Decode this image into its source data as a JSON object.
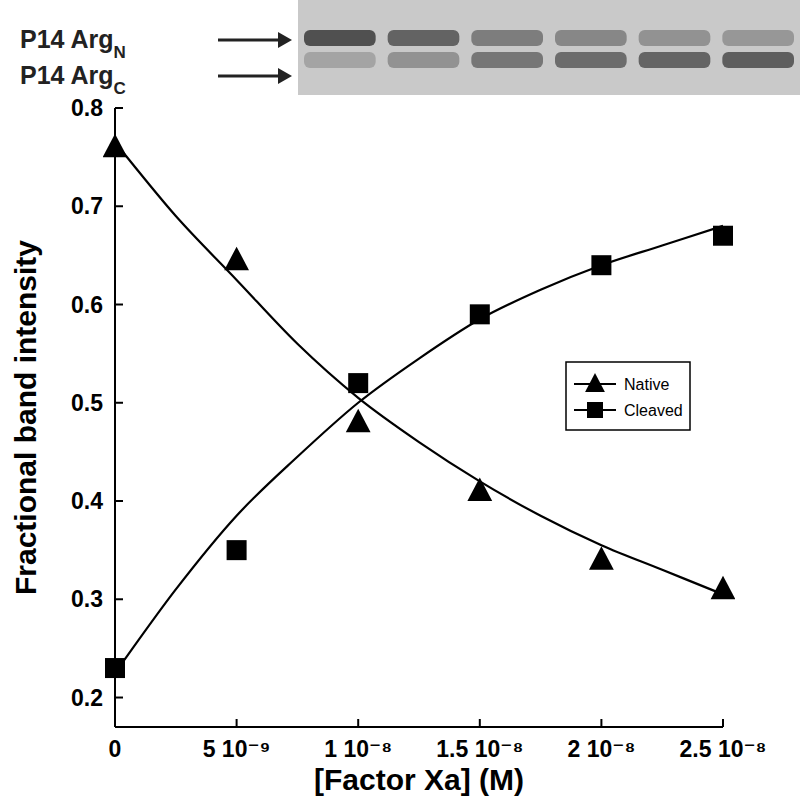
{
  "chart_data": {
    "type": "line",
    "x_label": "[Factor Xa] (M)",
    "y_label": "Fractional band intensity",
    "x": [
      0,
      5e-09,
      1e-08,
      1.5e-08,
      2e-08,
      2.5e-08
    ],
    "series": [
      {
        "name": "Native",
        "color": "#000000",
        "marker": "triangle",
        "line_style": "solid",
        "values": [
          0.76,
          0.645,
          0.48,
          0.41,
          0.34,
          0.31
        ],
        "fit_x": [
          0,
          2.5e-09,
          5e-09,
          7.5e-09,
          1e-08,
          1.25e-08,
          1.5e-08,
          1.75e-08,
          2e-08,
          2.25e-08,
          2.5e-08
        ],
        "fit": [
          0.765,
          0.69,
          0.625,
          0.56,
          0.505,
          0.46,
          0.42,
          0.385,
          0.355,
          0.33,
          0.305
        ]
      },
      {
        "name": "Cleaved",
        "color": "#000000",
        "marker": "square",
        "line_style": "solid",
        "values": [
          0.23,
          0.35,
          0.52,
          0.59,
          0.64,
          0.67
        ],
        "fit_x": [
          0,
          2.5e-09,
          5e-09,
          7.5e-09,
          1e-08,
          1.25e-08,
          1.5e-08,
          1.75e-08,
          2e-08,
          2.25e-08,
          2.5e-08
        ],
        "fit": [
          0.225,
          0.31,
          0.385,
          0.445,
          0.5,
          0.545,
          0.585,
          0.615,
          0.64,
          0.66,
          0.68
        ]
      }
    ],
    "xlim": [
      0,
      2.5e-08
    ],
    "xticks": [
      0,
      {
        "value": 5e-09,
        "label": "5 10⁻⁹"
      },
      {
        "value": 1e-08,
        "label": "1 10⁻⁸"
      },
      {
        "value": 1.5e-08,
        "label": "1.5 10⁻⁸"
      },
      {
        "value": 2e-08,
        "label": "2 10⁻⁸"
      },
      {
        "value": 2.5e-08,
        "label": "2.5 10⁻⁸"
      }
    ],
    "ylim": [
      0.17,
      0.8
    ],
    "yticks": [
      0.2,
      0.3,
      0.4,
      0.5,
      0.6,
      0.7,
      0.8
    ],
    "grid": false,
    "legend": "right",
    "annotations": [
      {
        "text": "P14 Arg",
        "subscript": "N"
      },
      {
        "text": "P14 Arg",
        "subscript": "C"
      }
    ]
  }
}
